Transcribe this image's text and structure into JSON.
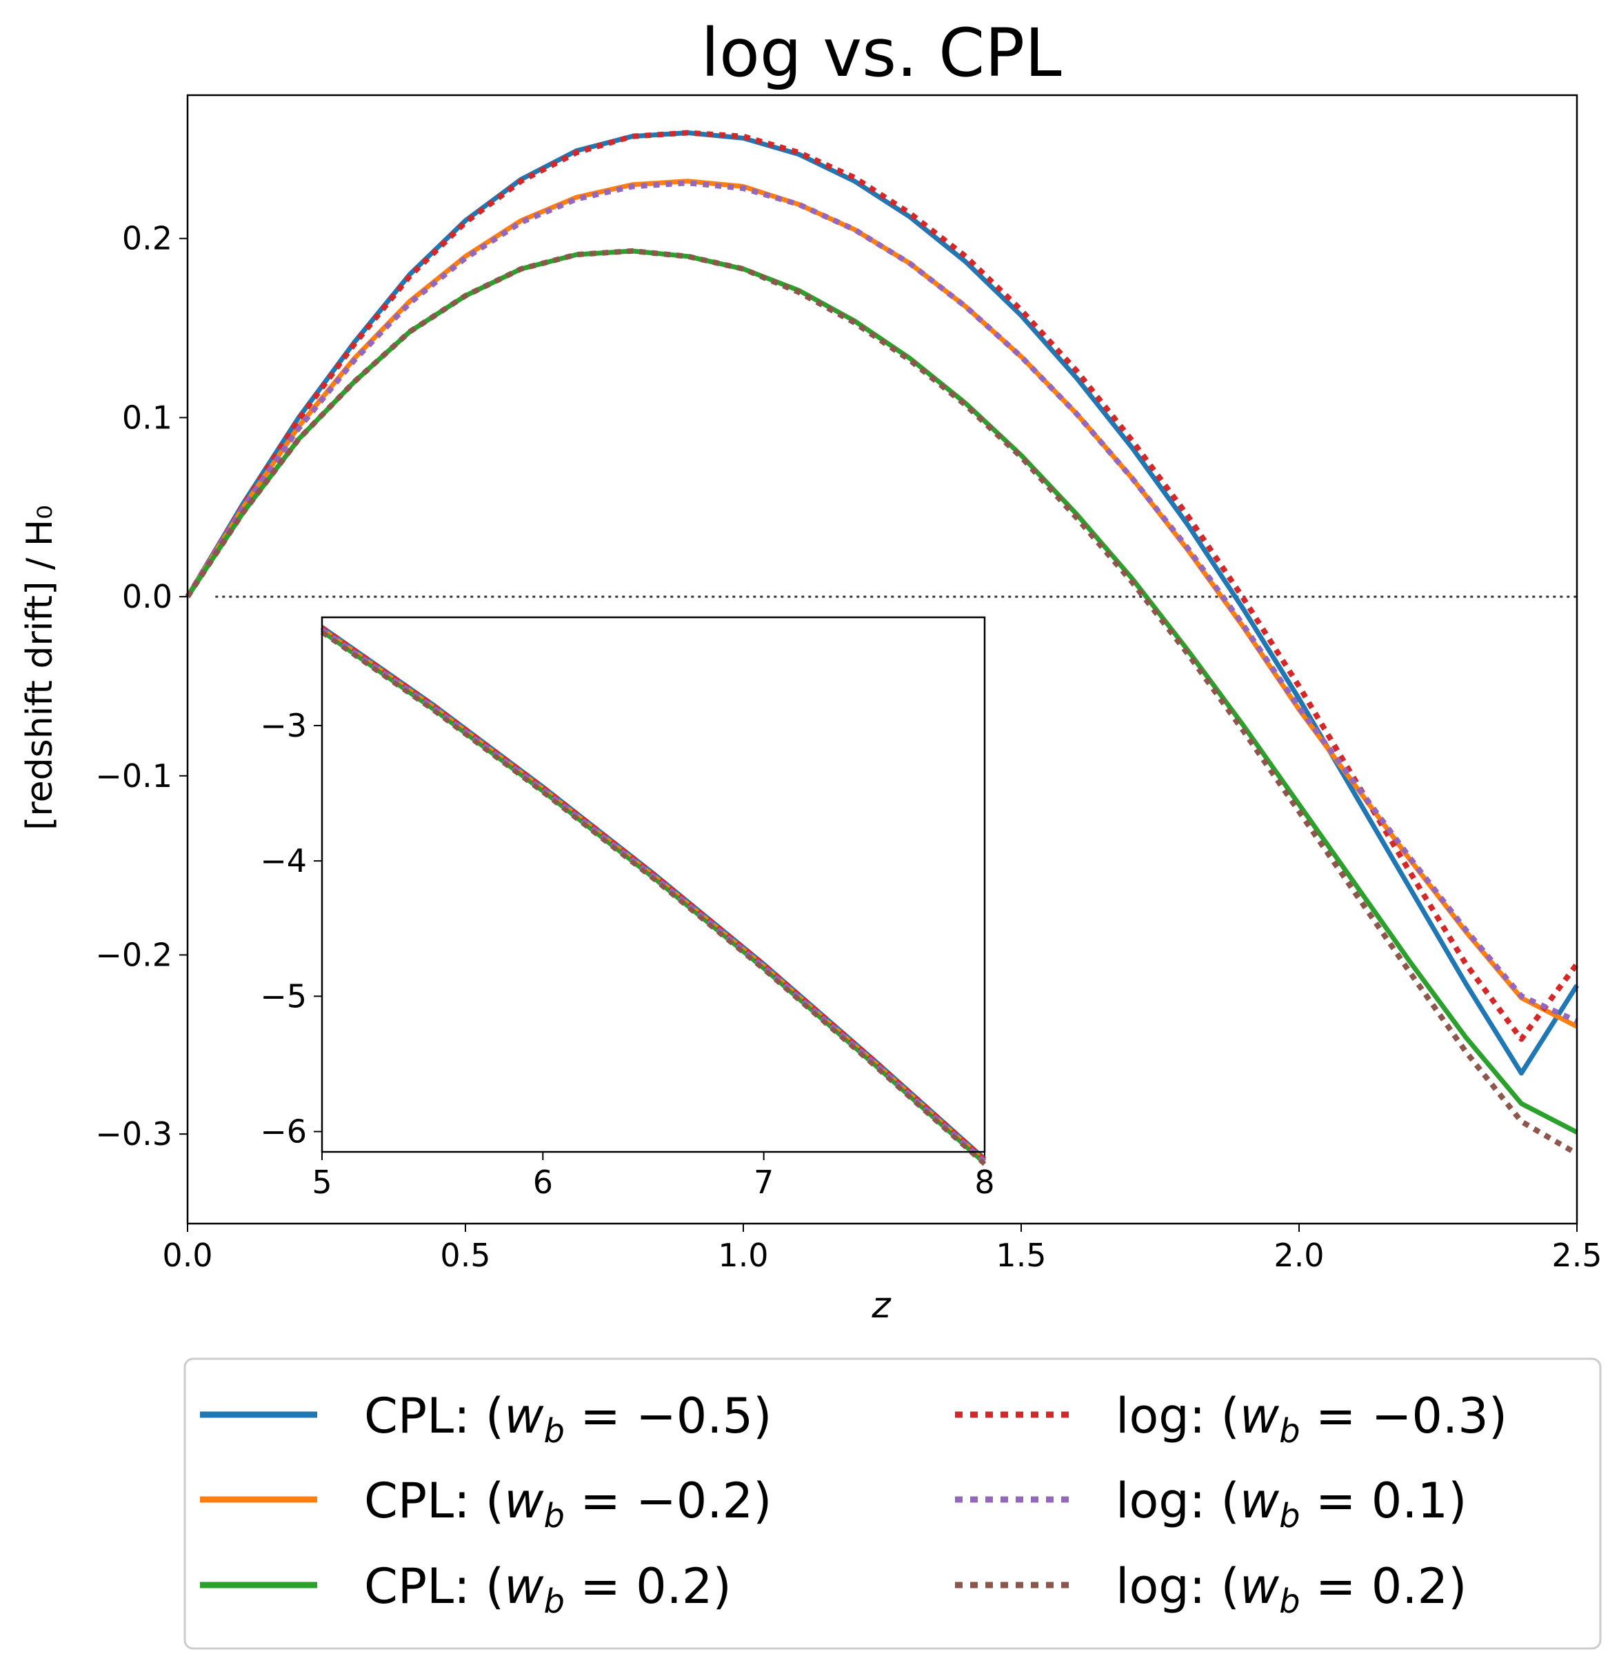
{
  "chart_data": {
    "type": "line",
    "title": "log  vs. CPL",
    "xlabel": "z",
    "ylabel": "[redshift drift] / H₀",
    "xlim": [
      0.0,
      2.5
    ],
    "ylim": [
      -0.35,
      0.28
    ],
    "xticks": [
      0.0,
      0.5,
      1.0,
      1.5,
      2.0,
      2.5
    ],
    "xtick_labels": [
      "0.0",
      "0.5",
      "1.0",
      "1.5",
      "2.0",
      "2.5"
    ],
    "yticks": [
      -0.3,
      -0.2,
      -0.1,
      0.0,
      0.1,
      0.2
    ],
    "ytick_labels": [
      "−0.3",
      "−0.2",
      "−0.1",
      "0.0",
      "0.1",
      "0.2"
    ],
    "reference_line": {
      "y": 0.0,
      "style": "dotted",
      "color": "#333333"
    },
    "series": [
      {
        "name": "CPL: (w_b = −0.5)",
        "style": "solid",
        "color": "#1f77b4",
        "x": [
          0,
          0.1,
          0.2,
          0.3,
          0.4,
          0.5,
          0.6,
          0.7,
          0.8,
          0.9,
          1.0,
          1.1,
          1.2,
          1.3,
          1.4,
          1.5,
          1.6,
          1.7,
          1.8,
          1.9,
          2.0,
          2.1,
          2.2,
          2.3,
          2.4,
          2.5
        ],
        "y": [
          0.0,
          0.052,
          0.1,
          0.142,
          0.18,
          0.21,
          0.233,
          0.249,
          0.257,
          0.259,
          0.256,
          0.247,
          0.232,
          0.212,
          0.187,
          0.157,
          0.122,
          0.083,
          0.04,
          -0.007,
          -0.057,
          -0.11,
          -0.163,
          -0.216,
          -0.266,
          -0.217
        ]
      },
      {
        "name": "CPL: (w_b = −0.2)",
        "style": "solid",
        "color": "#ff7f0e",
        "x": [
          0,
          0.1,
          0.2,
          0.3,
          0.4,
          0.5,
          0.6,
          0.7,
          0.8,
          0.9,
          1.0,
          1.1,
          1.2,
          1.3,
          1.4,
          1.5,
          1.6,
          1.7,
          1.8,
          1.9,
          2.0,
          2.1,
          2.2,
          2.3,
          2.4,
          2.5
        ],
        "y": [
          0.0,
          0.05,
          0.095,
          0.133,
          0.165,
          0.19,
          0.21,
          0.223,
          0.23,
          0.232,
          0.229,
          0.219,
          0.205,
          0.186,
          0.162,
          0.134,
          0.102,
          0.066,
          0.026,
          -0.017,
          -0.063,
          -0.105,
          -0.147,
          -0.187,
          -0.224,
          -0.24
        ]
      },
      {
        "name": "CPL: (w_b = 0.2)",
        "style": "solid",
        "color": "#2ca02c",
        "x": [
          0,
          0.1,
          0.2,
          0.3,
          0.4,
          0.5,
          0.6,
          0.7,
          0.8,
          0.9,
          1.0,
          1.1,
          1.2,
          1.3,
          1.4,
          1.5,
          1.6,
          1.7,
          1.8,
          1.9,
          2.0,
          2.1,
          2.2,
          2.3,
          2.4,
          2.5
        ],
        "y": [
          0.0,
          0.047,
          0.088,
          0.12,
          0.148,
          0.168,
          0.183,
          0.191,
          0.193,
          0.19,
          0.183,
          0.171,
          0.154,
          0.133,
          0.108,
          0.079,
          0.046,
          0.01,
          -0.03,
          -0.072,
          -0.116,
          -0.16,
          -0.204,
          -0.246,
          -0.283,
          -0.299
        ]
      },
      {
        "name": "log: (w_b = −0.3)",
        "style": "dotted",
        "color": "#d62728",
        "x": [
          0,
          0.1,
          0.2,
          0.3,
          0.4,
          0.5,
          0.6,
          0.7,
          0.8,
          0.9,
          1.0,
          1.1,
          1.2,
          1.3,
          1.4,
          1.5,
          1.6,
          1.7,
          1.8,
          1.9,
          2.0,
          2.1,
          2.2,
          2.3,
          2.4,
          2.5
        ],
        "y": [
          0.0,
          0.051,
          0.099,
          0.141,
          0.179,
          0.209,
          0.232,
          0.248,
          0.257,
          0.259,
          0.257,
          0.248,
          0.234,
          0.214,
          0.19,
          0.16,
          0.126,
          0.087,
          0.045,
          -0.001,
          -0.05,
          -0.102,
          -0.154,
          -0.205,
          -0.247,
          -0.205
        ]
      },
      {
        "name": "log: (w_b = 0.1)",
        "style": "dotted",
        "color": "#9467bd",
        "x": [
          0,
          0.1,
          0.2,
          0.3,
          0.4,
          0.5,
          0.6,
          0.7,
          0.8,
          0.9,
          1.0,
          1.1,
          1.2,
          1.3,
          1.4,
          1.5,
          1.6,
          1.7,
          1.8,
          1.9,
          2.0,
          2.1,
          2.2,
          2.3,
          2.4,
          2.5
        ],
        "y": [
          0.0,
          0.05,
          0.094,
          0.132,
          0.164,
          0.189,
          0.209,
          0.222,
          0.229,
          0.231,
          0.228,
          0.219,
          0.205,
          0.186,
          0.162,
          0.134,
          0.102,
          0.066,
          0.027,
          -0.016,
          -0.062,
          -0.104,
          -0.146,
          -0.186,
          -0.223,
          -0.237
        ]
      },
      {
        "name": "log: (w_b = 0.2)",
        "style": "dotted",
        "color": "#8c564b",
        "x": [
          0,
          0.1,
          0.2,
          0.3,
          0.4,
          0.5,
          0.6,
          0.7,
          0.8,
          0.9,
          1.0,
          1.1,
          1.2,
          1.3,
          1.4,
          1.5,
          1.6,
          1.7,
          1.8,
          1.9,
          2.0,
          2.1,
          2.2,
          2.3,
          2.4,
          2.5
        ],
        "y": [
          0.0,
          0.047,
          0.088,
          0.12,
          0.148,
          0.168,
          0.183,
          0.191,
          0.193,
          0.19,
          0.183,
          0.17,
          0.153,
          0.132,
          0.107,
          0.078,
          0.044,
          0.008,
          -0.032,
          -0.075,
          -0.12,
          -0.165,
          -0.21,
          -0.254,
          -0.293,
          -0.311
        ]
      }
    ],
    "inset": {
      "xlim": [
        5,
        8
      ],
      "ylim": [
        -6.15,
        -2.2
      ],
      "xticks": [
        5,
        6,
        7,
        8
      ],
      "xtick_labels": [
        "5",
        "6",
        "7",
        "8"
      ],
      "yticks": [
        -6,
        -5,
        -4,
        -3
      ],
      "ytick_labels": [
        "−6",
        "−5",
        "−4",
        "−3"
      ],
      "x": [
        5.0,
        5.5,
        6.0,
        6.5,
        7.0,
        7.5,
        8.0
      ],
      "y": [
        -2.27,
        -2.84,
        -3.45,
        -4.09,
        -4.76,
        -5.47,
        -6.2
      ],
      "colors": [
        "#1f77b4",
        "#ff7f0e",
        "#2ca02c",
        "#d62728",
        "#9467bd",
        "#8c564b"
      ]
    },
    "legend": {
      "location": "bottom",
      "columns": 2,
      "entries": [
        {
          "prefix": "CPL: (",
          "var": "w",
          "sub": "b",
          "value": " = −0.5)",
          "series": 0
        },
        {
          "prefix": "CPL: (",
          "var": "w",
          "sub": "b",
          "value": " = −0.2)",
          "series": 1
        },
        {
          "prefix": "CPL: (",
          "var": "w",
          "sub": "b",
          "value": " = 0.2)",
          "series": 2
        },
        {
          "prefix": "log: (",
          "var": "w",
          "sub": "b",
          "value": " = −0.3)",
          "series": 3
        },
        {
          "prefix": "log: (",
          "var": "w",
          "sub": "b",
          "value": " = 0.1)",
          "series": 4
        },
        {
          "prefix": "log: (",
          "var": "w",
          "sub": "b",
          "value": " = 0.2)",
          "series": 5
        }
      ]
    }
  }
}
